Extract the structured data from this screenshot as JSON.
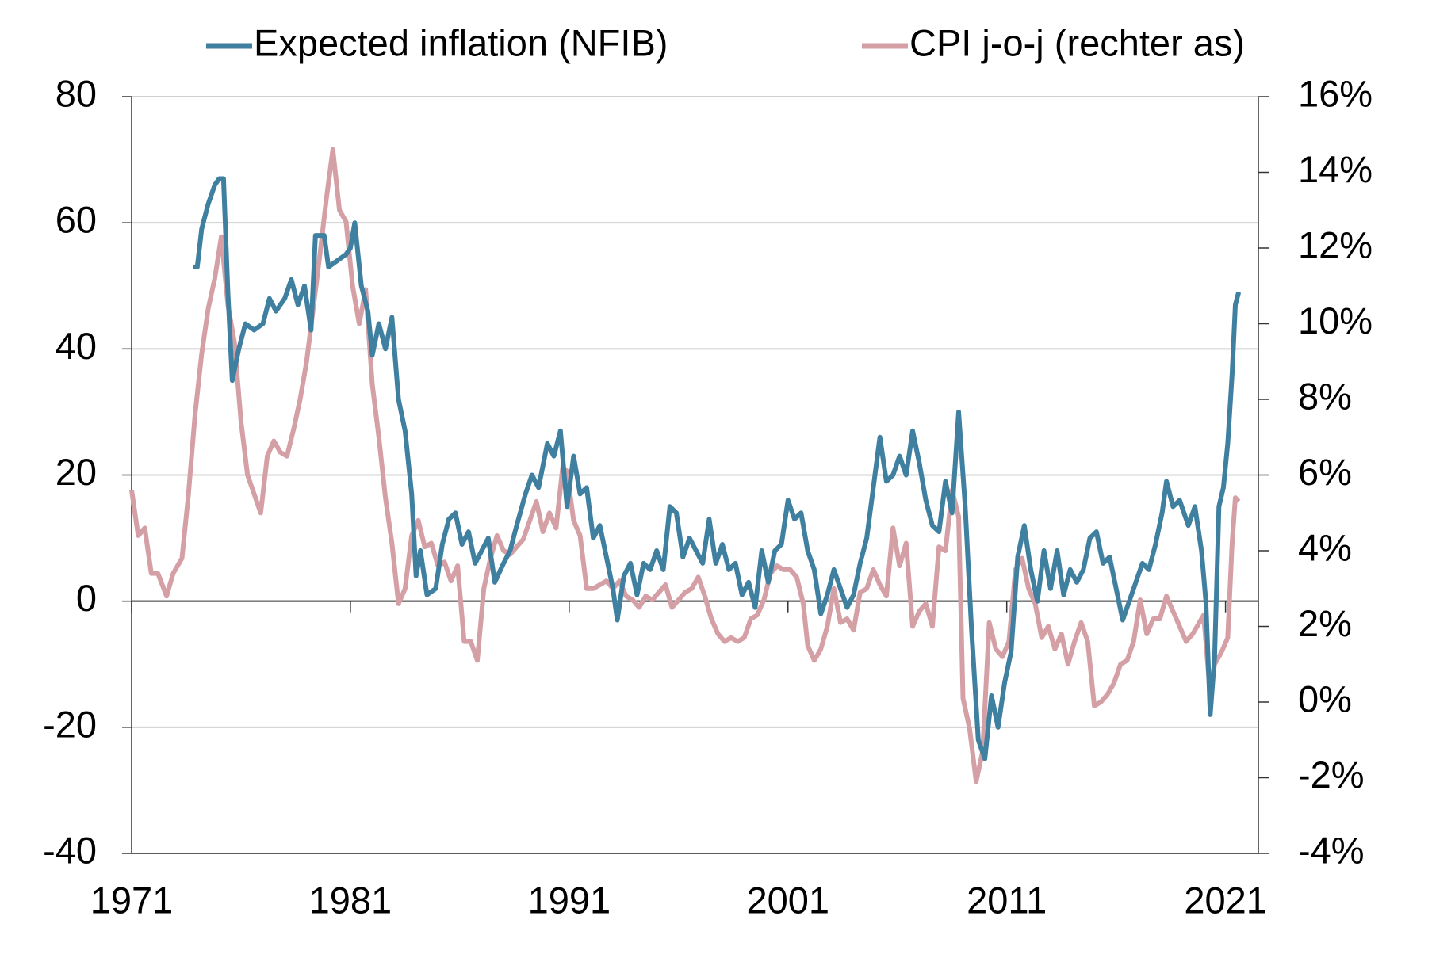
{
  "chart_data": {
    "type": "line",
    "xlim": [
      1971,
      2022.5
    ],
    "xticks": [
      1971,
      1981,
      1991,
      2001,
      2011,
      2021
    ],
    "ylim": [
      -40,
      80
    ],
    "yticks": [
      -40,
      -20,
      0,
      20,
      40,
      60,
      80
    ],
    "y2lim": [
      -4,
      16
    ],
    "y2ticks": [
      {
        "value": -4,
        "label": "-4%"
      },
      {
        "value": -2,
        "label": "-2%"
      },
      {
        "value": 0,
        "label": "0%"
      },
      {
        "value": 2,
        "label": "2%"
      },
      {
        "value": 4,
        "label": "4%"
      },
      {
        "value": 6,
        "label": "6%"
      },
      {
        "value": 8,
        "label": "8%"
      },
      {
        "value": 10,
        "label": "10%"
      },
      {
        "value": 12,
        "label": "12%"
      },
      {
        "value": 14,
        "label": "14%"
      },
      {
        "value": 16,
        "label": "16%"
      }
    ],
    "grid": true,
    "legend": "top",
    "series": [
      {
        "name": "Expected inflation (NFIB)",
        "color": "#3f7fa0",
        "x": [
          1973.8,
          1974.0,
          1974.2,
          1974.5,
          1974.8,
          1975.0,
          1975.2,
          1975.4,
          1975.6,
          1975.9,
          1976.2,
          1976.6,
          1977.0,
          1977.3,
          1977.6,
          1978.0,
          1978.3,
          1978.6,
          1978.9,
          1979.2,
          1979.4,
          1979.8,
          1980.0,
          1980.4,
          1980.8,
          1981.0,
          1981.2,
          1981.5,
          1981.8,
          1982.0,
          1982.3,
          1982.6,
          1982.9,
          1983.2,
          1983.5,
          1983.8,
          1984.0,
          1984.2,
          1984.5,
          1984.9,
          1985.2,
          1985.5,
          1985.8,
          1986.1,
          1986.4,
          1986.7,
          1987.0,
          1987.3,
          1987.6,
          1988.0,
          1988.3,
          1988.6,
          1989.0,
          1989.3,
          1989.6,
          1990.0,
          1990.3,
          1990.6,
          1990.9,
          1991.2,
          1991.5,
          1991.8,
          1992.1,
          1992.4,
          1992.7,
          1993.0,
          1993.2,
          1993.5,
          1993.8,
          1994.1,
          1994.4,
          1994.7,
          1995.0,
          1995.3,
          1995.6,
          1995.9,
          1996.2,
          1996.5,
          1996.8,
          1997.1,
          1997.4,
          1997.7,
          1998.0,
          1998.3,
          1998.6,
          1998.9,
          1999.2,
          1999.5,
          1999.8,
          2000.1,
          2000.4,
          2000.7,
          2001.0,
          2001.3,
          2001.6,
          2001.9,
          2002.2,
          2002.5,
          2002.8,
          2003.1,
          2003.4,
          2003.7,
          2004.0,
          2004.3,
          2004.6,
          2004.9,
          2005.2,
          2005.5,
          2005.8,
          2006.1,
          2006.4,
          2006.7,
          2007.0,
          2007.3,
          2007.6,
          2007.9,
          2008.2,
          2008.5,
          2008.8,
          2009.1,
          2009.4,
          2009.7,
          2010.0,
          2010.3,
          2010.6,
          2010.9,
          2011.2,
          2011.5,
          2011.8,
          2012.1,
          2012.4,
          2012.7,
          2013.0,
          2013.3,
          2013.6,
          2013.9,
          2014.2,
          2014.5,
          2014.8,
          2015.1,
          2015.4,
          2015.7,
          2016.0,
          2016.3,
          2016.6,
          2016.9,
          2017.2,
          2017.5,
          2017.8,
          2018.1,
          2018.3,
          2018.6,
          2018.9,
          2019.3,
          2019.6,
          2019.9,
          2020.1,
          2020.3,
          2020.5,
          2020.7,
          2020.9,
          2021.1,
          2021.3,
          2021.45,
          2021.6
        ],
        "values": [
          53,
          53,
          59,
          63,
          66,
          67,
          67,
          49,
          35,
          40,
          44,
          43,
          44,
          48,
          46,
          48,
          51,
          47,
          50,
          43,
          58,
          58,
          53,
          54,
          55,
          56,
          60,
          50,
          46,
          39,
          44,
          40,
          45,
          32,
          27,
          17,
          4,
          8,
          1,
          2,
          9,
          13,
          14,
          9,
          11,
          6,
          8,
          10,
          3,
          6,
          8,
          12,
          17,
          20,
          18,
          25,
          23,
          27,
          15,
          23,
          17,
          18,
          10,
          12,
          7,
          2,
          -3,
          4,
          6,
          1,
          6,
          5,
          8,
          5,
          15,
          14,
          7,
          10,
          8,
          6,
          13,
          6,
          9,
          5,
          6,
          1,
          3,
          -1,
          8,
          3,
          8,
          9,
          16,
          13,
          14,
          8,
          5,
          -2,
          1,
          5,
          2,
          -1,
          1,
          6,
          10,
          18,
          26,
          19,
          20,
          23,
          20,
          27,
          22,
          16,
          12,
          11,
          19,
          14,
          30,
          15,
          -5,
          -22,
          -25,
          -15,
          -20,
          -13,
          -8,
          7,
          12,
          5,
          0,
          8,
          2,
          8,
          1,
          5,
          3,
          5,
          10,
          11,
          6,
          7,
          2,
          -3,
          0,
          3,
          6,
          5,
          9,
          14,
          19,
          15,
          16,
          12,
          15,
          8,
          0,
          -18,
          -9,
          15,
          18,
          25,
          36,
          47,
          49
        ]
      },
      {
        "name": "CPI j-o-j (rechter as)",
        "color": "#d4a0a6",
        "axis": "y2",
        "x": [
          1971.0,
          1971.3,
          1971.6,
          1971.9,
          1972.2,
          1972.6,
          1972.9,
          1973.3,
          1973.6,
          1973.9,
          1974.2,
          1974.5,
          1974.8,
          1975.1,
          1975.4,
          1975.7,
          1976.0,
          1976.3,
          1976.6,
          1976.9,
          1977.2,
          1977.5,
          1977.8,
          1978.1,
          1978.4,
          1978.7,
          1979.0,
          1979.3,
          1979.6,
          1979.9,
          1980.2,
          1980.5,
          1980.8,
          1981.1,
          1981.4,
          1981.7,
          1982.0,
          1982.3,
          1982.6,
          1982.9,
          1983.2,
          1983.5,
          1983.8,
          1984.1,
          1984.4,
          1984.7,
          1985.0,
          1985.3,
          1985.6,
          1985.9,
          1986.2,
          1986.5,
          1986.8,
          1987.1,
          1987.4,
          1987.7,
          1988.0,
          1988.3,
          1988.6,
          1988.9,
          1989.2,
          1989.5,
          1989.8,
          1990.1,
          1990.4,
          1990.7,
          1990.9,
          1991.2,
          1991.5,
          1991.8,
          1992.1,
          1992.4,
          1992.7,
          1993.0,
          1993.3,
          1993.6,
          1993.9,
          1994.2,
          1994.5,
          1994.8,
          1995.1,
          1995.4,
          1995.7,
          1996.0,
          1996.3,
          1996.6,
          1996.9,
          1997.2,
          1997.5,
          1997.8,
          1998.1,
          1998.4,
          1998.7,
          1999.0,
          1999.3,
          1999.6,
          1999.9,
          2000.2,
          2000.5,
          2000.8,
          2001.1,
          2001.4,
          2001.7,
          2001.9,
          2002.2,
          2002.5,
          2002.8,
          2003.1,
          2003.4,
          2003.7,
          2004.0,
          2004.3,
          2004.6,
          2004.9,
          2005.2,
          2005.5,
          2005.8,
          2006.1,
          2006.4,
          2006.7,
          2007.0,
          2007.3,
          2007.6,
          2007.9,
          2008.2,
          2008.5,
          2008.8,
          2009.0,
          2009.3,
          2009.6,
          2009.9,
          2010.2,
          2010.5,
          2010.8,
          2011.1,
          2011.4,
          2011.7,
          2012.0,
          2012.3,
          2012.6,
          2012.9,
          2013.2,
          2013.5,
          2013.8,
          2014.1,
          2014.4,
          2014.7,
          2015.0,
          2015.3,
          2015.6,
          2015.9,
          2016.2,
          2016.5,
          2016.8,
          2017.1,
          2017.4,
          2017.7,
          2018.0,
          2018.3,
          2018.6,
          2018.9,
          2019.2,
          2019.5,
          2019.8,
          2020.0,
          2020.3,
          2020.5,
          2020.8,
          2021.1,
          2021.3,
          2021.45,
          2021.6
        ],
        "values": [
          5.6,
          4.4,
          4.6,
          3.4,
          3.4,
          2.8,
          3.4,
          3.8,
          5.5,
          7.6,
          9.2,
          10.4,
          11.2,
          12.3,
          10.5,
          9.5,
          7.4,
          6.0,
          5.5,
          5.0,
          6.5,
          6.9,
          6.6,
          6.5,
          7.2,
          8.0,
          9.0,
          10.4,
          11.8,
          13.3,
          14.6,
          13.0,
          12.7,
          11.0,
          10.0,
          10.9,
          8.4,
          7.0,
          5.4,
          4.2,
          2.6,
          3.0,
          4.4,
          4.8,
          4.1,
          4.2,
          3.6,
          3.7,
          3.2,
          3.6,
          1.6,
          1.6,
          1.1,
          3.0,
          3.8,
          4.4,
          4.0,
          3.9,
          4.1,
          4.3,
          4.8,
          5.3,
          4.5,
          5.0,
          4.6,
          6.2,
          6.1,
          4.8,
          4.4,
          3.0,
          3.0,
          3.1,
          3.2,
          3.0,
          3.2,
          2.8,
          2.7,
          2.5,
          2.8,
          2.7,
          2.9,
          3.1,
          2.5,
          2.7,
          2.9,
          3.0,
          3.3,
          2.8,
          2.2,
          1.8,
          1.6,
          1.7,
          1.6,
          1.7,
          2.2,
          2.3,
          2.7,
          3.4,
          3.6,
          3.5,
          3.5,
          3.3,
          2.6,
          1.5,
          1.1,
          1.4,
          2.0,
          3.0,
          2.1,
          2.2,
          1.9,
          2.9,
          3.0,
          3.5,
          3.1,
          2.8,
          4.6,
          3.6,
          4.2,
          2.0,
          2.4,
          2.6,
          2.0,
          4.1,
          4.0,
          5.6,
          4.9,
          0.1,
          -0.7,
          -2.1,
          -1.3,
          2.1,
          1.4,
          1.2,
          1.6,
          3.5,
          3.8,
          3.0,
          2.6,
          1.7,
          2.0,
          1.4,
          1.8,
          1.0,
          1.6,
          2.1,
          1.6,
          -0.1,
          0.0,
          0.2,
          0.5,
          1.0,
          1.1,
          1.6,
          2.7,
          1.8,
          2.2,
          2.2,
          2.8,
          2.4,
          2.0,
          1.6,
          1.8,
          2.1,
          2.3,
          0.2,
          1.0,
          1.3,
          1.7,
          4.2,
          5.4,
          5.3
        ]
      }
    ]
  }
}
